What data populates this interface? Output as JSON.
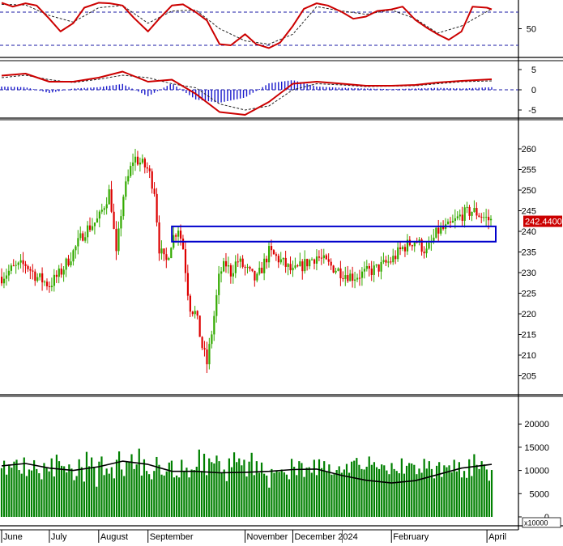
{
  "chart_data": [
    {
      "panel": "stochastic",
      "type": "line",
      "ylim": [
        0,
        100
      ],
      "y_ticks": [
        "50"
      ],
      "reference_levels": [
        20,
        80
      ],
      "x_labels": [
        "June",
        "July",
        "August",
        "September",
        "November",
        "December 2024",
        "February",
        "April"
      ],
      "colors": {
        "main": "#cc0000",
        "signal": "#222222",
        "ref": "#1a1aa6"
      },
      "series": [
        {
          "role": "main",
          "x": [
            "2023-06-01",
            "2023-06-08",
            "2023-06-16",
            "2023-06-23",
            "2023-07-01",
            "2023-07-08",
            "2023-07-16",
            "2023-07-23",
            "2023-08-01",
            "2023-08-08",
            "2023-08-16",
            "2023-08-23",
            "2023-09-01",
            "2023-09-08",
            "2023-09-16",
            "2023-09-23",
            "2023-10-01",
            "2023-10-08",
            "2023-10-16",
            "2023-10-23",
            "2023-11-01",
            "2023-11-08",
            "2023-11-16",
            "2023-11-23",
            "2023-12-01",
            "2023-12-08",
            "2023-12-16",
            "2023-12-23",
            "2024-01-01",
            "2024-01-08",
            "2024-01-16",
            "2024-01-23",
            "2024-02-01",
            "2024-02-08",
            "2024-02-16",
            "2024-02-23",
            "2024-03-01",
            "2024-03-08",
            "2024-03-16",
            "2024-03-23",
            "2024-04-01",
            "2024-04-04"
          ],
          "values": [
            97,
            90,
            96,
            92,
            68,
            45,
            60,
            88,
            97,
            96,
            92,
            70,
            45,
            68,
            92,
            94,
            80,
            65,
            22,
            20,
            40,
            22,
            15,
            25,
            55,
            86,
            96,
            92,
            80,
            68,
            72,
            82,
            85,
            90,
            66,
            52,
            40,
            30,
            45,
            90,
            88,
            85
          ]
        },
        {
          "role": "signal",
          "x": [
            "2023-06-01",
            "2023-06-16",
            "2023-07-01",
            "2023-07-16",
            "2023-08-01",
            "2023-08-16",
            "2023-09-01",
            "2023-09-16",
            "2023-10-01",
            "2023-10-16",
            "2023-11-01",
            "2023-11-16",
            "2023-12-01",
            "2023-12-16",
            "2024-01-01",
            "2024-01-16",
            "2024-02-01",
            "2024-02-16",
            "2024-03-01",
            "2024-03-16",
            "2024-04-04"
          ],
          "values": [
            94,
            93,
            74,
            62,
            88,
            92,
            60,
            82,
            84,
            50,
            28,
            22,
            40,
            90,
            82,
            76,
            84,
            68,
            42,
            55,
            86
          ]
        }
      ]
    },
    {
      "panel": "macd",
      "type": "line",
      "ylim": [
        -7,
        7
      ],
      "y_ticks": [
        "5",
        "0",
        "-5"
      ],
      "colors": {
        "macd": "#cc0000",
        "signal": "#222222",
        "histogram": "#1a1acc",
        "zero": "#1a1aa6"
      },
      "series": [
        {
          "role": "macd",
          "x": [
            "2023-06-01",
            "2023-06-16",
            "2023-07-01",
            "2023-07-16",
            "2023-08-01",
            "2023-08-16",
            "2023-09-01",
            "2023-09-16",
            "2023-10-01",
            "2023-10-16",
            "2023-11-01",
            "2023-11-16",
            "2023-12-01",
            "2023-12-16",
            "2024-01-01",
            "2024-01-16",
            "2024-02-01",
            "2024-02-16",
            "2024-03-01",
            "2024-03-16",
            "2024-04-04"
          ],
          "values": [
            3.5,
            4.0,
            2.0,
            2.0,
            3.0,
            4.5,
            2.0,
            2.5,
            -1.0,
            -5.5,
            -6.2,
            -3.0,
            1.5,
            2.0,
            1.5,
            1.0,
            1.0,
            1.2,
            1.8,
            2.2,
            2.6
          ]
        },
        {
          "role": "signal",
          "x": [
            "2023-06-01",
            "2023-06-16",
            "2023-07-01",
            "2023-07-16",
            "2023-08-01",
            "2023-08-16",
            "2023-09-01",
            "2023-09-16",
            "2023-10-01",
            "2023-10-16",
            "2023-11-01",
            "2023-11-16",
            "2023-12-01",
            "2023-12-16",
            "2024-01-01",
            "2024-01-16",
            "2024-02-01",
            "2024-02-16",
            "2024-03-01",
            "2024-03-16",
            "2024-04-04"
          ],
          "values": [
            3.0,
            3.6,
            2.5,
            1.8,
            2.6,
            3.6,
            3.0,
            1.5,
            0.5,
            -3.5,
            -5.0,
            -4.0,
            0.0,
            1.5,
            1.2,
            0.8,
            0.9,
            1.0,
            1.5,
            2.0,
            2.2
          ]
        }
      ]
    },
    {
      "panel": "price",
      "type": "candlestick",
      "ylim": [
        200,
        265
      ],
      "y_ticks": [
        "205",
        "210",
        "215",
        "220",
        "225",
        "230",
        "235",
        "240",
        "245",
        "250",
        "255",
        "260"
      ],
      "last_price_label": "242.4400",
      "highlight_box": {
        "x": [
          "2023-09-16",
          "2024-04-04"
        ],
        "y": [
          237.5,
          241.2
        ],
        "color": "#0000cc"
      },
      "colors": {
        "up": "#33aa00",
        "down": "#dd0000",
        "label_bg": "#cc0000"
      },
      "close": {
        "x": [
          "2023-06-01",
          "2023-06-08",
          "2023-06-16",
          "2023-06-23",
          "2023-07-01",
          "2023-07-08",
          "2023-07-16",
          "2023-07-23",
          "2023-08-01",
          "2023-08-08",
          "2023-08-12",
          "2023-08-16",
          "2023-08-23",
          "2023-09-01",
          "2023-09-05",
          "2023-09-08",
          "2023-09-12",
          "2023-09-16",
          "2023-09-20",
          "2023-09-23",
          "2023-09-27",
          "2023-10-01",
          "2023-10-05",
          "2023-10-08",
          "2023-10-12",
          "2023-10-16",
          "2023-10-20",
          "2023-10-23",
          "2023-10-27",
          "2023-11-01",
          "2023-11-08",
          "2023-11-16",
          "2023-11-23",
          "2023-12-01",
          "2023-12-08",
          "2023-12-16",
          "2023-12-23",
          "2024-01-01",
          "2024-01-08",
          "2024-01-16",
          "2024-01-23",
          "2024-02-01",
          "2024-02-08",
          "2024-02-16",
          "2024-02-23",
          "2024-03-01",
          "2024-03-08",
          "2024-03-16",
          "2024-03-23",
          "2024-04-01",
          "2024-04-04"
        ],
        "values": [
          229,
          231,
          232,
          229,
          227,
          230,
          235,
          240,
          243,
          250,
          234,
          248,
          258,
          255,
          250,
          236,
          232,
          238,
          241,
          236,
          222,
          220,
          212,
          208,
          218,
          230,
          232,
          230,
          233,
          231,
          228,
          235,
          233,
          230,
          232,
          234,
          232,
          230,
          229,
          230,
          231,
          233,
          236,
          238,
          235,
          240,
          241,
          244,
          245,
          243,
          242.44
        ]
      }
    },
    {
      "panel": "volume",
      "type": "bar",
      "ylim": [
        0,
        25000
      ],
      "y_ticks": [
        "0",
        "5000",
        "10000",
        "15000",
        "20000"
      ],
      "unit_label": "x10000",
      "colors": {
        "bars": "#008000",
        "average": "#000000"
      },
      "bar_values": [
        10500,
        12100,
        9100,
        11300,
        10600,
        11900,
        12300,
        10100,
        9300,
        12800,
        8800,
        10200,
        10000,
        12200,
        10300,
        9400,
        8100,
        11600,
        10500,
        9800,
        12600,
        8700,
        13400,
        12000,
        11000,
        10900,
        9600,
        11300,
        10400,
        7900,
        8800,
        12400,
        10700,
        7600,
        14000,
        10900,
        12800,
        10800,
        6500,
        11900,
        13000,
        9000,
        10400,
        9300,
        10700,
        8300,
        12300,
        14100,
        10200,
        8800,
        12000,
        11800,
        13500,
        10300,
        11300,
        14700,
        8900,
        12400,
        9900,
        9200,
        8100,
        9900,
        12900,
        11200,
        9100,
        8900,
        9800,
        11700,
        12100,
        8500,
        8900,
        8500,
        12300,
        9800,
        10600,
        8500,
        10200,
        10100,
        10800,
        14500,
        9900,
        13600,
        9000,
        12600,
        11800,
        11500,
        13200,
        12000,
        9500,
        10200,
        7700,
        12600,
        10700,
        13900,
        11800,
        12600,
        11100,
        12300,
        8700,
        11900,
        13800,
        9000,
        12000,
        9500,
        11700,
        9300,
        8900,
        6300,
        10300,
        9500,
        9900,
        9700,
        10200,
        9600,
        9100,
        8100,
        12500,
        10800,
        9000,
        12000,
        11600,
        8600,
        10600,
        10700,
        9500,
        12300,
        9000,
        12400,
        10500,
        12000,
        9700,
        11300,
        9100,
        9200,
        10100,
        10900,
        9500,
        10200,
        11400,
        9500,
        11900,
        12100,
        12700,
        11200,
        10300,
        10200,
        10800,
        13000,
        11200,
        11800,
        10700,
        10300,
        11300,
        11100,
        10000,
        9200,
        11600,
        10300,
        9900,
        9400,
        12600,
        9300,
        11000,
        11600,
        11500,
        11200,
        9200,
        10400,
        9500,
        12500,
        10400,
        12000,
        10300,
        8300,
        11000,
        11800,
        8600,
        11100,
        10700,
        11100,
        9600,
        12300,
        9800,
        11800,
        8500,
        9900,
        8400,
        12400,
        8800,
        13500,
        11200,
        10300,
        12000,
        11300,
        10200,
        7800,
        10100
      ],
      "average": {
        "x": [
          "2023-06-01",
          "2023-06-16",
          "2023-07-01",
          "2023-07-16",
          "2023-08-01",
          "2023-08-16",
          "2023-09-01",
          "2023-09-16",
          "2023-10-01",
          "2023-10-16",
          "2023-11-01",
          "2023-11-16",
          "2023-12-01",
          "2023-12-16",
          "2024-01-01",
          "2024-01-16",
          "2024-02-01",
          "2024-02-16",
          "2024-03-01",
          "2024-03-16",
          "2024-04-04"
        ],
        "values": [
          11000,
          11500,
          10500,
          10000,
          10800,
          12000,
          11300,
          9800,
          9800,
          9500,
          9600,
          9800,
          10200,
          10300,
          8900,
          7900,
          7300,
          7800,
          9100,
          10500,
          11300
        ]
      }
    }
  ]
}
